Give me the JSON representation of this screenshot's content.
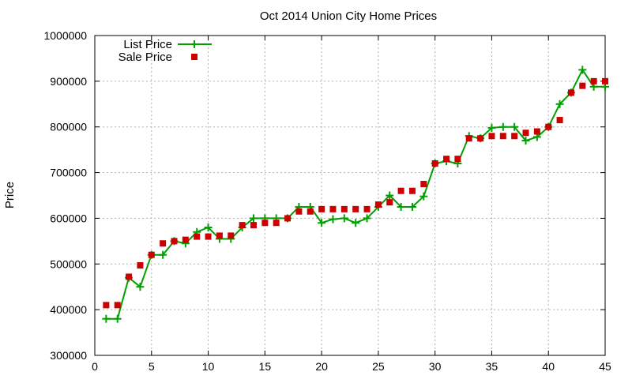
{
  "chart_data": {
    "type": "line",
    "title": "Oct 2014 Union City Home Prices",
    "xlabel": "",
    "ylabel": "Price",
    "xlim": [
      0,
      45
    ],
    "ylim": [
      300000,
      1000000
    ],
    "x_ticks": [
      0,
      5,
      10,
      15,
      20,
      25,
      30,
      35,
      40,
      45
    ],
    "y_ticks": [
      300000,
      400000,
      500000,
      600000,
      700000,
      800000,
      900000,
      1000000
    ],
    "x_tick_labels": [
      "0",
      "5",
      "10",
      "15",
      "20",
      "25",
      "30",
      "35",
      "40",
      "45"
    ],
    "y_tick_labels": [
      "300000",
      "400000",
      "500000",
      "600000",
      "700000",
      "800000",
      "900000",
      "1000000"
    ],
    "grid": true,
    "legend_position": "top-left",
    "x": [
      1,
      2,
      3,
      4,
      5,
      6,
      7,
      8,
      9,
      10,
      11,
      12,
      13,
      14,
      15,
      16,
      17,
      18,
      19,
      20,
      21,
      22,
      23,
      24,
      25,
      26,
      27,
      28,
      29,
      30,
      31,
      32,
      33,
      34,
      35,
      36,
      37,
      38,
      39,
      40,
      41,
      42,
      43,
      44,
      45
    ],
    "series": [
      {
        "name": "List Price",
        "style": "line+cross",
        "color": "#00a000",
        "values": [
          380000,
          380000,
          470000,
          450000,
          520000,
          520000,
          550000,
          545000,
          570000,
          580000,
          555000,
          555000,
          580000,
          600000,
          600000,
          600000,
          600000,
          625000,
          625000,
          590000,
          598000,
          600000,
          590000,
          600000,
          625000,
          650000,
          625000,
          625000,
          648000,
          720000,
          725000,
          720000,
          780000,
          775000,
          798000,
          800000,
          800000,
          770000,
          778000,
          800000,
          850000,
          875000,
          925000,
          888000,
          888000
        ]
      },
      {
        "name": "Sale Price",
        "style": "square",
        "color": "#cc0000",
        "values": [
          410000,
          410000,
          472000,
          497000,
          520000,
          545000,
          550000,
          553000,
          560000,
          560000,
          562000,
          562000,
          585000,
          585000,
          590000,
          590000,
          600000,
          615000,
          615000,
          620000,
          620000,
          620000,
          620000,
          620000,
          630000,
          635000,
          660000,
          660000,
          675000,
          720000,
          730000,
          730000,
          775000,
          775000,
          780000,
          780000,
          780000,
          787000,
          790000,
          800000,
          815000,
          875000,
          890000,
          900000,
          900000
        ]
      }
    ]
  }
}
